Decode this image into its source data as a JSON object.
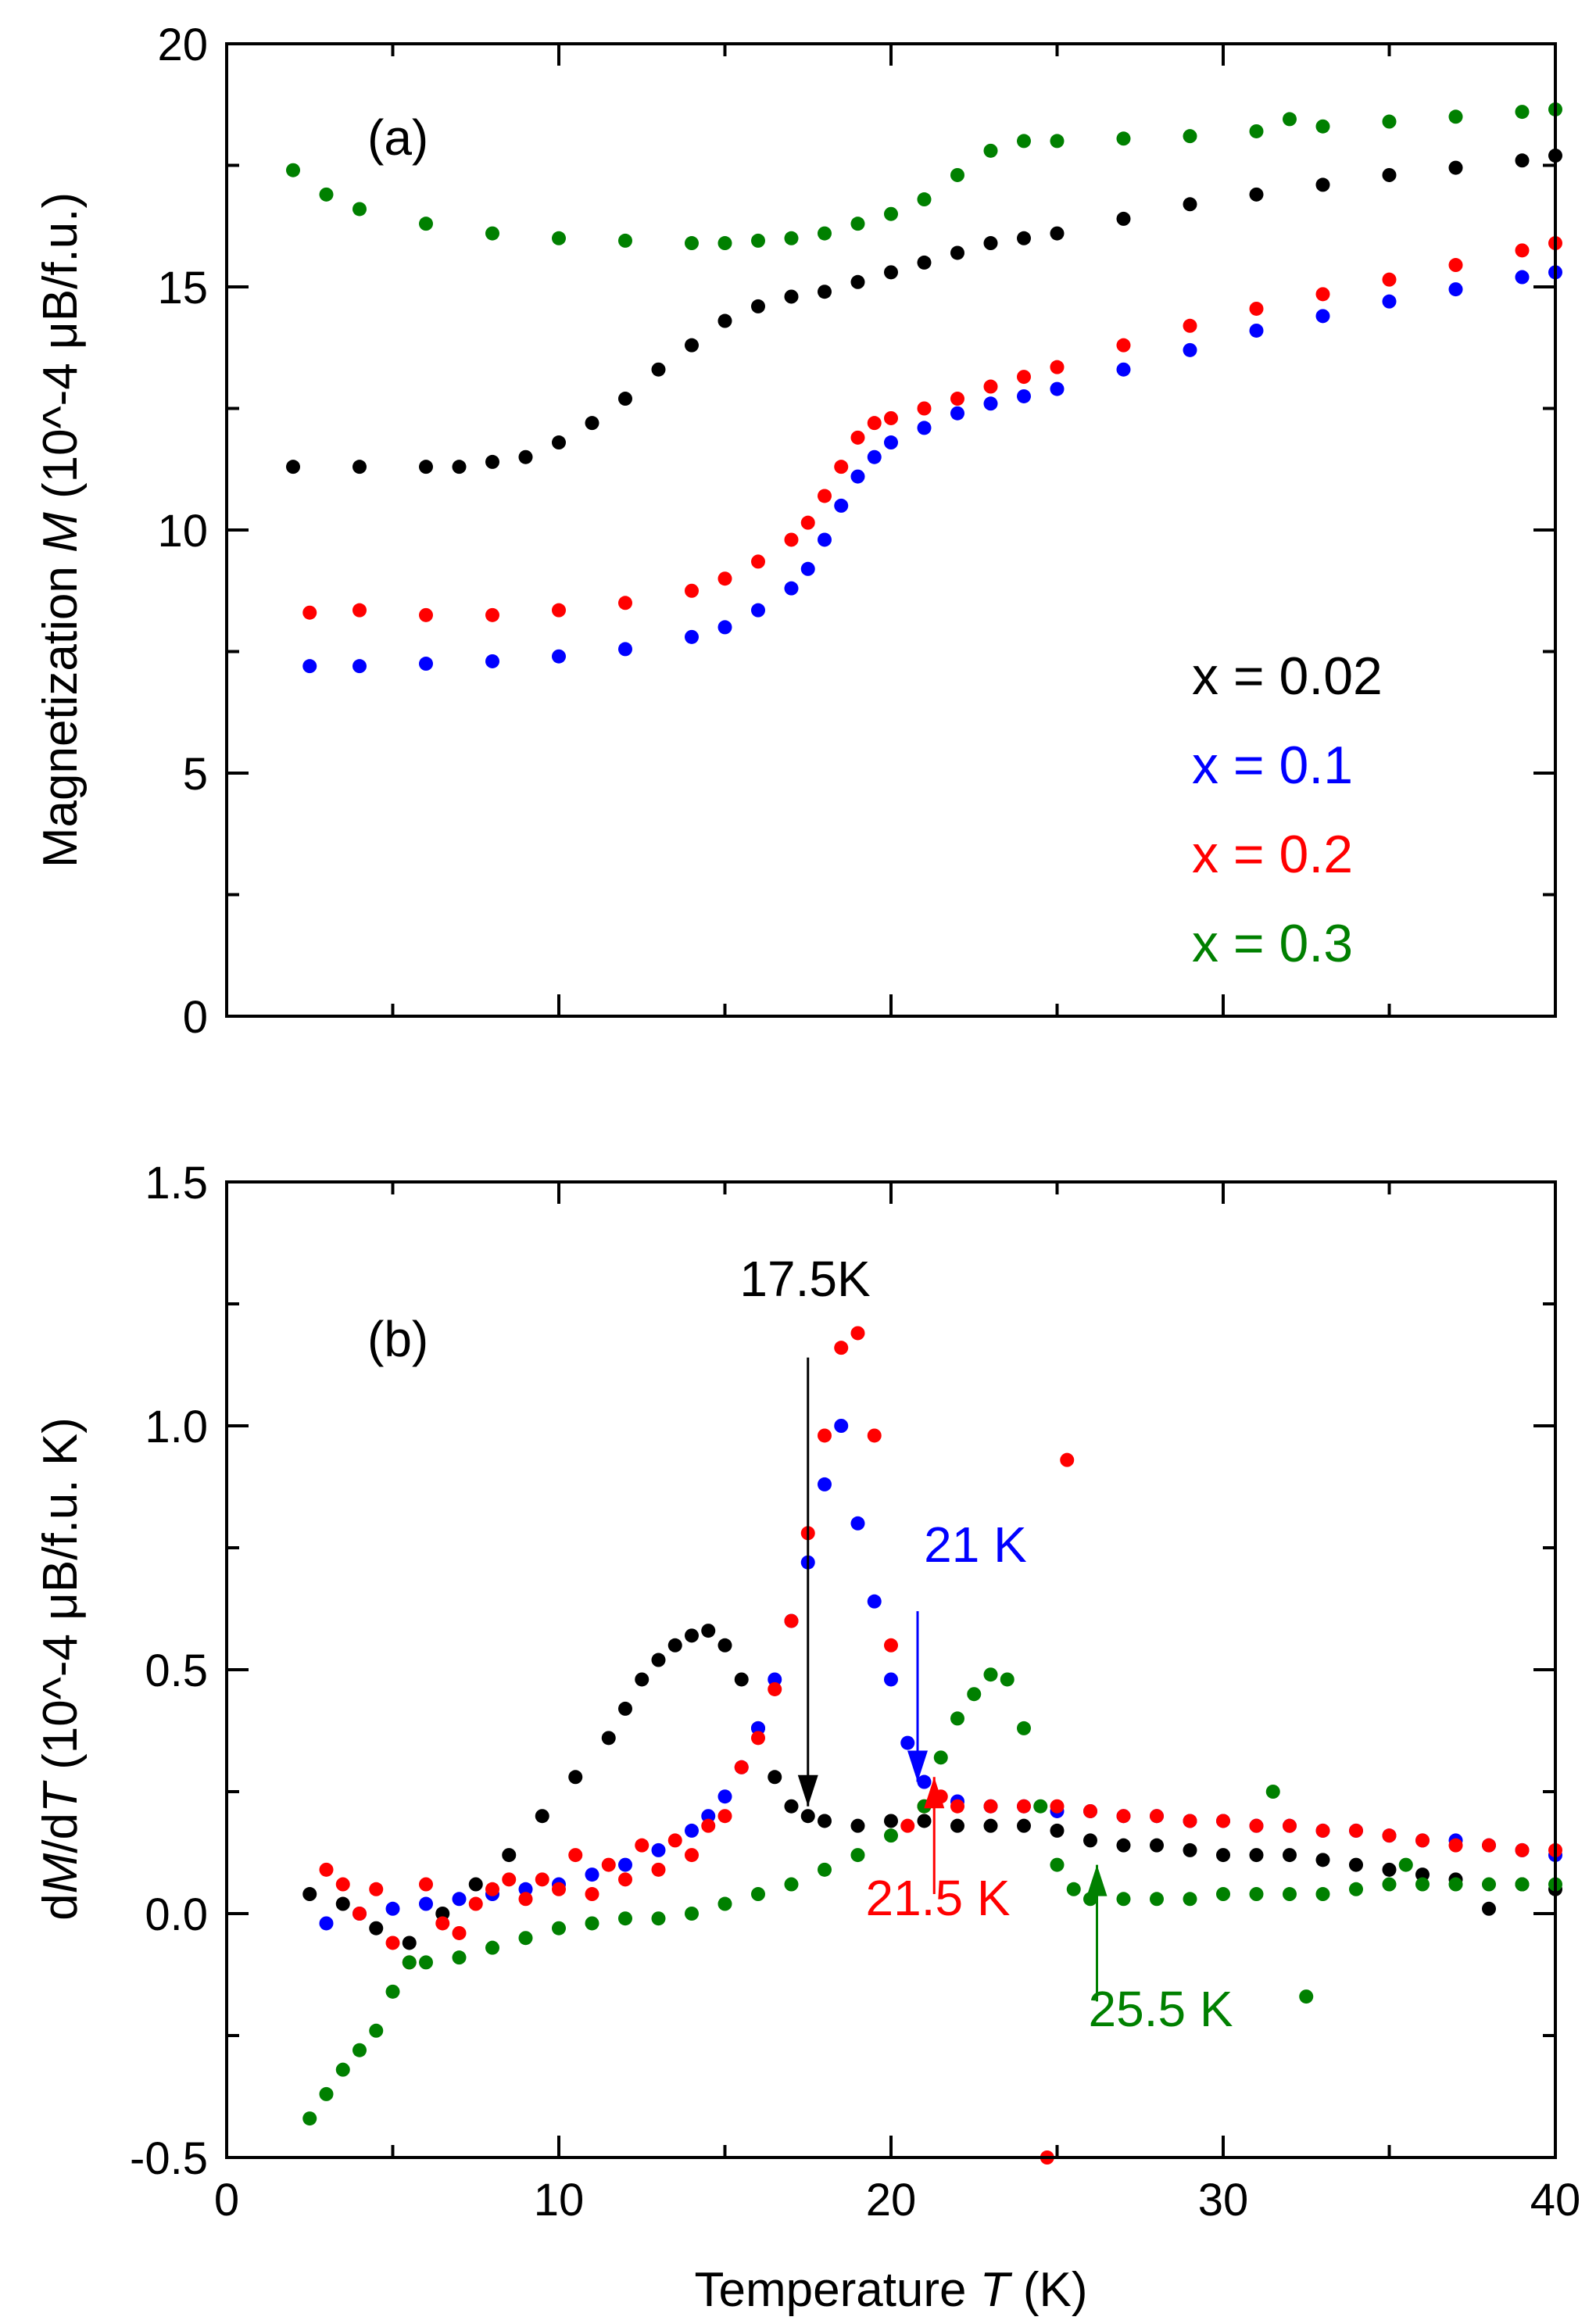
{
  "chart_data": [
    {
      "type": "scatter",
      "panel_label": "(a)",
      "xlabel": "Temperature T (K)",
      "ylabel_prefix": "Magnetization ",
      "ylabel_var": "M",
      "ylabel_units": " (10^-4 μB/f.u.)",
      "xlim": [
        0,
        40
      ],
      "ylim": [
        0,
        20
      ],
      "x_ticks": [
        0,
        10,
        20,
        30,
        40
      ],
      "y_ticks": [
        0,
        5,
        10,
        15,
        20
      ],
      "y_tick_labels": [
        "0",
        "5",
        "10",
        "15",
        "20"
      ],
      "legend": {
        "placement": "bottom-right",
        "entries": [
          {
            "label": "x = 0.02",
            "color": "#000000"
          },
          {
            "label": "x = 0.1",
            "color": "#0000ff"
          },
          {
            "label": "x = 0.2",
            "color": "#ff0000"
          },
          {
            "label": "x = 0.3",
            "color": "#008000"
          }
        ]
      },
      "series": [
        {
          "name": "x = 0.02",
          "color": "#000000",
          "x": [
            2,
            4,
            6,
            7,
            8,
            9,
            10,
            11,
            12,
            13,
            14,
            15,
            16,
            17,
            18,
            19,
            20,
            21,
            22,
            23,
            24,
            25,
            27,
            29,
            31,
            33,
            35,
            37,
            39,
            40
          ],
          "y": [
            11.3,
            11.3,
            11.3,
            11.3,
            11.4,
            11.5,
            11.8,
            12.2,
            12.7,
            13.3,
            13.8,
            14.3,
            14.6,
            14.8,
            14.9,
            15.1,
            15.3,
            15.5,
            15.7,
            15.9,
            16.0,
            16.1,
            16.4,
            16.7,
            16.9,
            17.1,
            17.3,
            17.45,
            17.6,
            17.7
          ]
        },
        {
          "name": "x = 0.1",
          "color": "#0000ff",
          "x": [
            2.5,
            4,
            6,
            8,
            10,
            12,
            14,
            15,
            16,
            17,
            17.5,
            18,
            18.5,
            19,
            19.5,
            20,
            21,
            22,
            23,
            24,
            25,
            27,
            29,
            31,
            33,
            35,
            37,
            39,
            40
          ],
          "y": [
            7.2,
            7.2,
            7.25,
            7.3,
            7.4,
            7.55,
            7.8,
            8.0,
            8.35,
            8.8,
            9.2,
            9.8,
            10.5,
            11.1,
            11.5,
            11.8,
            12.1,
            12.4,
            12.6,
            12.75,
            12.9,
            13.3,
            13.7,
            14.1,
            14.4,
            14.7,
            14.95,
            15.2,
            15.3
          ]
        },
        {
          "name": "x = 0.2",
          "color": "#ff0000",
          "x": [
            2.5,
            4,
            6,
            8,
            10,
            12,
            14,
            15,
            16,
            17,
            17.5,
            18,
            18.5,
            19,
            19.5,
            20,
            21,
            22,
            23,
            24,
            25,
            27,
            29,
            31,
            33,
            35,
            37,
            39,
            40
          ],
          "y": [
            8.3,
            8.35,
            8.25,
            8.25,
            8.35,
            8.5,
            8.75,
            9.0,
            9.35,
            9.8,
            10.15,
            10.7,
            11.3,
            11.9,
            12.2,
            12.3,
            12.5,
            12.7,
            12.95,
            13.15,
            13.35,
            13.8,
            14.2,
            14.55,
            14.85,
            15.15,
            15.45,
            15.75,
            15.9
          ]
        },
        {
          "name": "x = 0.3",
          "color": "#008000",
          "x": [
            2,
            3,
            4,
            6,
            8,
            10,
            12,
            14,
            15,
            16,
            17,
            18,
            19,
            20,
            21,
            22,
            23,
            24,
            25,
            27,
            29,
            31,
            32,
            33,
            35,
            37,
            39,
            40
          ],
          "y": [
            17.4,
            16.9,
            16.6,
            16.3,
            16.1,
            16.0,
            15.95,
            15.9,
            15.9,
            15.95,
            16.0,
            16.1,
            16.3,
            16.5,
            16.8,
            17.3,
            17.8,
            18.0,
            18.0,
            18.05,
            18.1,
            18.2,
            18.45,
            18.3,
            18.4,
            18.5,
            18.6,
            18.65
          ]
        }
      ]
    },
    {
      "type": "scatter",
      "panel_label": "(b)",
      "xlabel_prefix": "Temperature ",
      "xlabel_var": "T",
      "xlabel_units": " (K)",
      "ylabel_d1": "d",
      "ylabel_var1": "M",
      "ylabel_d2": "/d",
      "ylabel_var2": "T",
      "ylabel_units": " (10^-4 μB/f.u. K)",
      "xlim": [
        0,
        40
      ],
      "ylim": [
        -0.5,
        1.5
      ],
      "x_ticks": [
        0,
        10,
        20,
        30,
        40
      ],
      "x_tick_labels": [
        "0",
        "10",
        "20",
        "30",
        "40"
      ],
      "y_ticks": [
        -0.5,
        0.0,
        0.5,
        1.0,
        1.5
      ],
      "y_tick_labels": [
        "-0.5",
        "0.0",
        "0.5",
        "1.0",
        "1.5"
      ],
      "annotations": [
        {
          "text": "17.5K",
          "color": "#000000",
          "arrow_x": 17.5,
          "arrow_from_y": 1.14,
          "arrow_to_y": 0.22
        },
        {
          "text": "21 K",
          "color": "#0000ff",
          "arrow_x": 20.8,
          "arrow_from_y": 0.62,
          "arrow_to_y": 0.27
        },
        {
          "text": "21.5 K",
          "color": "#ff0000",
          "arrow_x": 21.3,
          "arrow_from_y": 0.04,
          "arrow_to_y": 0.28
        },
        {
          "text": "25.5 K",
          "color": "#008000",
          "arrow_x": 26.2,
          "arrow_from_y": -0.18,
          "arrow_to_y": 0.1
        }
      ],
      "series": [
        {
          "name": "x = 0.02",
          "color": "#000000",
          "x": [
            2.5,
            3.5,
            4.5,
            5.5,
            6.5,
            7.5,
            8.5,
            9.5,
            10.5,
            11.5,
            12.0,
            12.5,
            13.0,
            13.5,
            14.0,
            14.5,
            15.0,
            15.5,
            16.0,
            16.5,
            17.0,
            17.5,
            18.0,
            19.0,
            20.0,
            21.0,
            22.0,
            23.0,
            24.0,
            25.0,
            26.0,
            27.0,
            28.0,
            29.0,
            30.0,
            31.0,
            32.0,
            33.0,
            34.0,
            35.0,
            36.0,
            37.0,
            38.0,
            39.0,
            40.0
          ],
          "y": [
            0.04,
            0.02,
            -0.03,
            -0.06,
            0.0,
            0.06,
            0.12,
            0.2,
            0.28,
            0.36,
            0.42,
            0.48,
            0.52,
            0.55,
            0.57,
            0.58,
            0.55,
            0.48,
            0.38,
            0.28,
            0.22,
            0.2,
            0.19,
            0.18,
            0.19,
            0.19,
            0.18,
            0.18,
            0.18,
            0.17,
            0.15,
            0.14,
            0.14,
            0.13,
            0.12,
            0.12,
            0.12,
            0.11,
            0.1,
            0.09,
            0.08,
            0.07,
            0.01,
            0.06,
            0.05
          ]
        },
        {
          "name": "x = 0.1",
          "color": "#0000ff",
          "x": [
            3.0,
            4.0,
            5.0,
            6.0,
            7.0,
            8.0,
            9.0,
            10.0,
            11.0,
            12.0,
            13.0,
            14.0,
            14.5,
            15.0,
            15.5,
            16.0,
            16.5,
            17.0,
            17.5,
            18.0,
            18.5,
            19.0,
            19.5,
            20.0,
            20.5,
            21.0,
            22.0,
            23.0,
            24.0,
            25.0,
            26.0,
            27.0,
            28.0,
            29.0,
            30.0,
            31.0,
            32.0,
            33.0,
            34.0,
            35.0,
            36.0,
            37.0,
            38.0,
            39.0,
            40.0
          ],
          "y": [
            -0.02,
            0.0,
            0.01,
            0.02,
            0.03,
            0.04,
            0.05,
            0.06,
            0.08,
            0.1,
            0.13,
            0.17,
            0.2,
            0.24,
            0.3,
            0.38,
            0.48,
            0.6,
            0.72,
            0.88,
            1.0,
            0.8,
            0.64,
            0.48,
            0.35,
            0.27,
            0.23,
            0.22,
            0.22,
            0.21,
            0.21,
            0.2,
            0.2,
            0.19,
            0.19,
            0.18,
            0.18,
            0.17,
            0.17,
            0.16,
            0.15,
            0.15,
            0.14,
            0.13,
            0.12
          ]
        },
        {
          "name": "x = 0.2",
          "color": "#ff0000",
          "x": [
            3.0,
            3.5,
            4.0,
            4.5,
            5.0,
            5.5,
            6.0,
            6.5,
            7.0,
            7.5,
            8.0,
            8.5,
            9.0,
            9.5,
            10.0,
            10.5,
            11.0,
            11.5,
            12.0,
            12.5,
            13.0,
            13.5,
            14.0,
            14.5,
            15.0,
            15.5,
            16.0,
            16.5,
            17.0,
            17.5,
            18.0,
            18.5,
            19.0,
            19.5,
            20.0,
            20.5,
            21.0,
            21.5,
            22.0,
            23.0,
            24.0,
            25.0,
            25.3,
            26.0,
            27.0,
            28.0,
            29.0,
            30.0,
            31.0,
            32.0,
            33.0,
            34.0,
            35.0,
            36.0,
            37.0,
            38.0,
            39.0,
            40.0,
            24.7
          ],
          "y": [
            0.09,
            0.06,
            0.0,
            0.05,
            -0.06,
            -0.1,
            0.06,
            -0.02,
            -0.04,
            0.02,
            0.05,
            0.07,
            0.03,
            0.07,
            0.05,
            0.12,
            0.04,
            0.1,
            0.07,
            0.14,
            0.09,
            0.15,
            0.12,
            0.18,
            0.2,
            0.3,
            0.36,
            0.46,
            0.6,
            0.78,
            0.98,
            1.16,
            1.19,
            0.98,
            0.55,
            0.18,
            0.22,
            0.24,
            0.22,
            0.22,
            0.22,
            0.22,
            0.93,
            0.21,
            0.2,
            0.2,
            0.19,
            0.19,
            0.18,
            0.18,
            0.17,
            0.17,
            0.16,
            0.15,
            0.14,
            0.14,
            0.13,
            0.13,
            -0.5
          ]
        },
        {
          "name": "x = 0.3",
          "color": "#008000",
          "x": [
            2.5,
            3.0,
            3.5,
            4.0,
            4.5,
            5.0,
            5.5,
            6.0,
            7.0,
            8.0,
            9.0,
            10.0,
            11.0,
            12.0,
            13.0,
            14.0,
            15.0,
            16.0,
            17.0,
            18.0,
            19.0,
            20.0,
            21.0,
            21.5,
            22.0,
            22.5,
            23.0,
            23.5,
            24.0,
            24.5,
            25.0,
            25.5,
            26.0,
            27.0,
            28.0,
            29.0,
            30.0,
            31.0,
            31.5,
            32.0,
            32.5,
            33.0,
            34.0,
            35.0,
            35.5,
            36.0,
            37.0,
            38.0,
            39.0,
            40.0
          ],
          "y": [
            -0.42,
            -0.37,
            -0.32,
            -0.28,
            -0.24,
            -0.16,
            -0.1,
            -0.1,
            -0.09,
            -0.07,
            -0.05,
            -0.03,
            -0.02,
            -0.01,
            -0.01,
            0.0,
            0.02,
            0.04,
            0.06,
            0.09,
            0.12,
            0.16,
            0.22,
            0.32,
            0.4,
            0.45,
            0.49,
            0.48,
            0.38,
            0.22,
            0.1,
            0.05,
            0.03,
            0.03,
            0.03,
            0.03,
            0.04,
            0.04,
            0.25,
            0.04,
            -0.17,
            0.04,
            0.05,
            0.06,
            0.1,
            0.06,
            0.06,
            0.06,
            0.06,
            0.06
          ]
        }
      ]
    }
  ]
}
